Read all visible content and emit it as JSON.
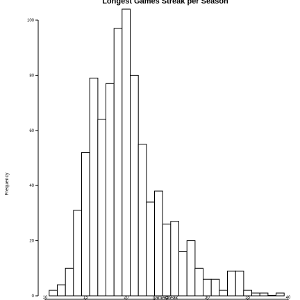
{
  "chart_data": {
    "type": "histogram",
    "title": "Longest Games Streak per Season",
    "xlabel": "gamestreak",
    "ylabel": "Frequency",
    "xlim": [
      10,
      40
    ],
    "ylim": [
      0,
      100
    ],
    "x_ticks": [
      10,
      15,
      20,
      25,
      30,
      35,
      40
    ],
    "y_ticks": [
      0,
      20,
      40,
      60,
      80,
      100
    ],
    "bin_width": 1,
    "bins": [
      {
        "x": 11,
        "value": 2
      },
      {
        "x": 12,
        "value": 4
      },
      {
        "x": 13,
        "value": 10
      },
      {
        "x": 14,
        "value": 31
      },
      {
        "x": 15,
        "value": 52
      },
      {
        "x": 16,
        "value": 79
      },
      {
        "x": 17,
        "value": 64
      },
      {
        "x": 18,
        "value": 77
      },
      {
        "x": 19,
        "value": 97
      },
      {
        "x": 20,
        "value": 104
      },
      {
        "x": 21,
        "value": 80
      },
      {
        "x": 22,
        "value": 55
      },
      {
        "x": 23,
        "value": 34
      },
      {
        "x": 24,
        "value": 38
      },
      {
        "x": 25,
        "value": 26
      },
      {
        "x": 26,
        "value": 27
      },
      {
        "x": 27,
        "value": 16
      },
      {
        "x": 28,
        "value": 20
      },
      {
        "x": 29,
        "value": 10
      },
      {
        "x": 30,
        "value": 6
      },
      {
        "x": 31,
        "value": 6
      },
      {
        "x": 32,
        "value": 2
      },
      {
        "x": 33,
        "value": 9
      },
      {
        "x": 34,
        "value": 9
      },
      {
        "x": 35,
        "value": 2
      },
      {
        "x": 36,
        "value": 1
      },
      {
        "x": 37,
        "value": 1
      },
      {
        "x": 38,
        "value": 0
      },
      {
        "x": 39,
        "value": 1
      }
    ],
    "bar_color": "#ffffff",
    "edge_color": "#000000"
  }
}
